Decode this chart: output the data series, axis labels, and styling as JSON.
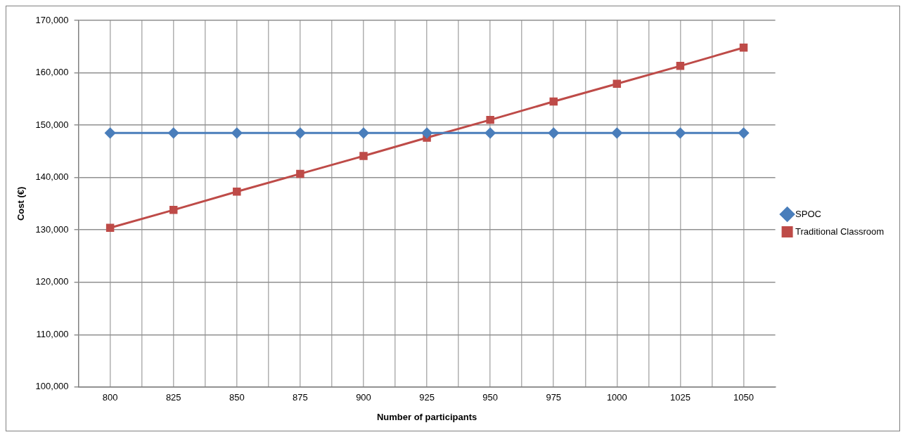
{
  "chart_data": {
    "type": "line",
    "xlabel": "Number of participants",
    "ylabel": "Cost (€)",
    "x": [
      800,
      825,
      850,
      875,
      900,
      925,
      950,
      975,
      1000,
      1025,
      1050
    ],
    "series": [
      {
        "name": "SPOC",
        "color": "#4a7ebb",
        "marker": "diamond",
        "values": [
          148500,
          148500,
          148500,
          148500,
          148500,
          148500,
          148500,
          148500,
          148500,
          148500,
          148500
        ]
      },
      {
        "name": "Traditional Classroom",
        "color": "#be4b48",
        "marker": "square",
        "values": [
          130400,
          133800,
          137300,
          140700,
          144100,
          147600,
          151000,
          154500,
          157900,
          161300,
          164800
        ]
      }
    ],
    "xlim": [
      787.5,
      1062.5
    ],
    "xticks": [
      {
        "value": 800,
        "label": "800"
      },
      {
        "value": 812.5,
        "label": null
      },
      {
        "value": 825,
        "label": "825"
      },
      {
        "value": 837.5,
        "label": null
      },
      {
        "value": 850,
        "label": "850"
      },
      {
        "value": 862.5,
        "label": null
      },
      {
        "value": 875,
        "label": "875"
      },
      {
        "value": 887.5,
        "label": null
      },
      {
        "value": 900,
        "label": "900"
      },
      {
        "value": 912.5,
        "label": null
      },
      {
        "value": 925,
        "label": "925"
      },
      {
        "value": 937.5,
        "label": null
      },
      {
        "value": 950,
        "label": "950"
      },
      {
        "value": 962.5,
        "label": null
      },
      {
        "value": 975,
        "label": "975"
      },
      {
        "value": 987.5,
        "label": null
      },
      {
        "value": 1000,
        "label": "1000"
      },
      {
        "value": 1012.5,
        "label": null
      },
      {
        "value": 1025,
        "label": "1025"
      },
      {
        "value": 1037.5,
        "label": null
      },
      {
        "value": 1050,
        "label": "1050"
      }
    ],
    "ylim": [
      100000,
      170000
    ],
    "yticks": [
      {
        "value": 100000,
        "label": "100,000"
      },
      {
        "value": 110000,
        "label": "110,000"
      },
      {
        "value": 120000,
        "label": "120,000"
      },
      {
        "value": 130000,
        "label": "130,000"
      },
      {
        "value": 140000,
        "label": "140,000"
      },
      {
        "value": 150000,
        "label": "150,000"
      },
      {
        "value": 160000,
        "label": "160,000"
      },
      {
        "value": 170000,
        "label": "170,000"
      }
    ],
    "grid": true,
    "legend": "right",
    "line_style": "solid"
  }
}
